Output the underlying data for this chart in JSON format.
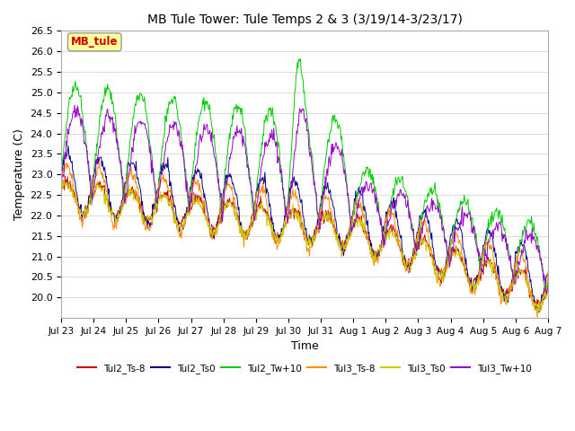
{
  "title": "MB Tule Tower: Tule Temps 2 & 3 (3/19/14-3/23/17)",
  "xlabel": "Time",
  "ylabel": "Temperature (C)",
  "ylim": [
    19.5,
    26.5
  ],
  "xtick_labels": [
    "Jul 23",
    "Jul 24",
    "Jul 25",
    "Jul 26",
    "Jul 27",
    "Jul 28",
    "Jul 29",
    "Jul 30",
    "Jul 31",
    "Aug 1",
    "Aug 2",
    "Aug 3",
    "Aug 4",
    "Aug 5",
    "Aug 6",
    "Aug 7"
  ],
  "legend_labels": [
    "Tul2_Ts-8",
    "Tul2_Ts0",
    "Tul2_Tw+10",
    "Tul3_Ts-8",
    "Tul3_Ts0",
    "Tul3_Tw+10"
  ],
  "legend_colors": [
    "#cc0000",
    "#00008b",
    "#00cc00",
    "#ff8c00",
    "#cccc00",
    "#9900cc"
  ],
  "annotation_text": "MB_tule",
  "annotation_color": "#cc0000",
  "annotation_bg": "#ffff99",
  "background_color": "#ffffff",
  "grid_color": "#cccccc"
}
